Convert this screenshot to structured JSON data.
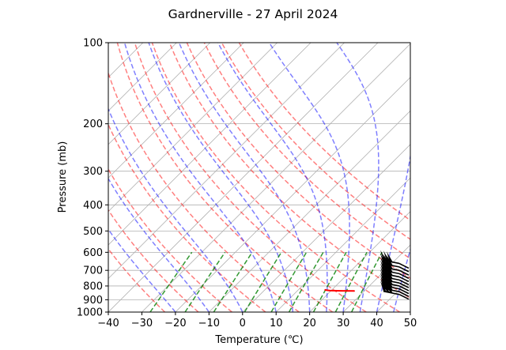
{
  "chart_data": {
    "type": "line",
    "chart_kind": "skew-T log-p diagram",
    "title": "Gardnerville - 27 April 2024",
    "xlabel": "Temperature (℃)",
    "ylabel": "Pressure (mb)",
    "xlim": [
      -40,
      50
    ],
    "ylim": [
      1000,
      100
    ],
    "y_scale": "log",
    "x_ticks": [
      -40,
      -30,
      -20,
      -10,
      0,
      10,
      20,
      30,
      40,
      50
    ],
    "y_ticks": [
      100,
      200,
      300,
      400,
      500,
      600,
      700,
      800,
      900,
      1000
    ],
    "grid": true,
    "legend": "none",
    "colors": {
      "temperature": "#ff0000",
      "dewpoint": "#008000",
      "dry_adiabats": "#ff0000",
      "moist_adiabats": "#0000ff",
      "mixing_ratio": "#008000",
      "isotherms": "#808080",
      "wind_barbs": "#000000"
    },
    "series": [
      {
        "role": "temperature",
        "points": [
          {
            "pressure": 835,
            "temperature": 27.0
          },
          {
            "pressure": 834,
            "temperature": 23.0
          },
          {
            "pressure": 832,
            "temperature": 19.5
          },
          {
            "pressure": 828,
            "temperature": 18.0
          }
        ]
      }
    ],
    "dry_adiabats_theta_K": [
      250,
      260,
      270,
      280,
      290,
      300,
      310,
      320,
      330,
      340,
      350,
      360,
      370
    ],
    "moist_adiabats_start_C": [
      -20,
      -10,
      0,
      10,
      15,
      20,
      25,
      30,
      35,
      40,
      45,
      50
    ],
    "mixing_ratio_lines_gkg": [
      0.4,
      1,
      2,
      4,
      7,
      10,
      16,
      24,
      32
    ],
    "wind_barb_levels_mb": [
      660,
      680,
      700,
      720,
      740,
      760,
      780,
      800,
      820,
      840,
      860
    ]
  }
}
